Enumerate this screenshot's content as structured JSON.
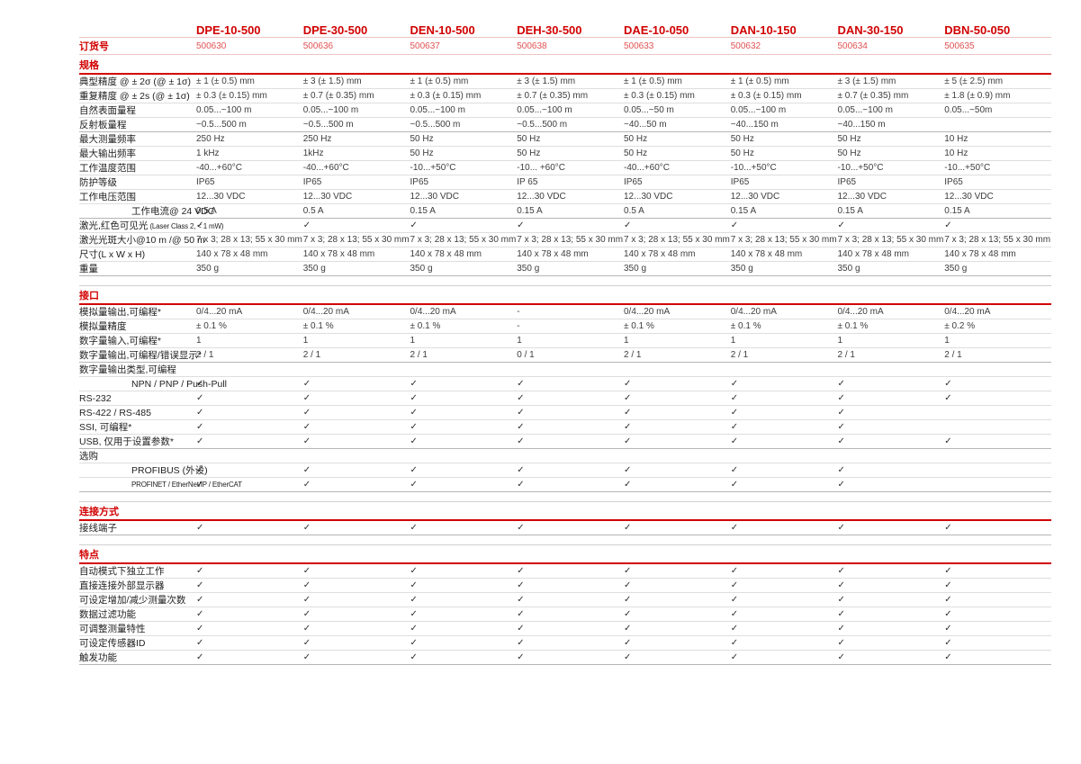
{
  "colors": {
    "accent_red": "#d10000",
    "order_number_red": "#e05252",
    "pink_line": "#eec3c3",
    "row_line": "#dedede",
    "heavy_line": "#b5b5b5",
    "text": "#3d3d3d"
  },
  "check_glyph": "✓",
  "header": {
    "order_label": "订货号",
    "columns": [
      {
        "model": "DPE-10-500",
        "order_no": "500630"
      },
      {
        "model": "DPE-30-500",
        "order_no": "500636"
      },
      {
        "model": "DEN-10-500",
        "order_no": "500637"
      },
      {
        "model": "DEH-30-500",
        "order_no": "500638"
      },
      {
        "model": "DAE-10-050",
        "order_no": "500633"
      },
      {
        "model": "DAN-10-150",
        "order_no": "500632"
      },
      {
        "model": "DAN-30-150",
        "order_no": "500634"
      },
      {
        "model": "DBN-50-050",
        "order_no": "500635"
      }
    ]
  },
  "sections": [
    {
      "title": "规格",
      "rows": [
        {
          "label": "典型精度 @ ± 2σ (@ ± 1σ)",
          "values": [
            "± 1 (± 0.5) mm",
            "± 3 (± 1.5) mm",
            "± 1 (± 0.5) mm",
            "± 3 (± 1.5) mm",
            "± 1 (± 0.5) mm",
            "± 1 (± 0.5) mm",
            "± 3 (± 1.5) mm",
            "± 5 (± 2.5) mm"
          ]
        },
        {
          "label": "重复精度 @ ± 2s (@ ± 1σ)",
          "values": [
            "± 0.3 (± 0.15) mm",
            "± 0.7 (± 0.35) mm",
            "± 0.3 (± 0.15) mm",
            "± 0.7 (± 0.35) mm",
            "± 0.3 (± 0.15) mm",
            "± 0.3 (± 0.15) mm",
            "± 0.7 (± 0.35) mm",
            "± 1.8 (± 0.9) mm"
          ]
        },
        {
          "label": "自然表面量程",
          "values": [
            "0.05...~100 m",
            "0.05...~100 m",
            "0.05...~100 m",
            "0.05...~100 m",
            "0.05...~50 m",
            "0.05...~100 m",
            "0.05...~100 m",
            "0.05...~50m"
          ]
        },
        {
          "label": "反射板量程",
          "heavy": true,
          "values": [
            "~0.5...500 m",
            "~0.5...500 m",
            "~0.5...500 m",
            "~0.5...500 m",
            "~40...50 m",
            "~40...150 m",
            "~40...150 m",
            ""
          ]
        },
        {
          "label": "最大测量频率",
          "values": [
            "250 Hz",
            "250 Hz",
            "50 Hz",
            "50 Hz",
            "50 Hz",
            "50 Hz",
            "50 Hz",
            "10 Hz"
          ]
        },
        {
          "label": "最大输出频率",
          "values": [
            "1 kHz",
            "1kHz",
            "50 Hz",
            "50 Hz",
            "50 Hz",
            "50 Hz",
            "50 Hz",
            "10 Hz"
          ]
        },
        {
          "label": "工作温度范围",
          "values": [
            "-40...+60°C",
            "-40...+60°C",
            "-10...+50°C",
            "-10... +60°C",
            "-40...+60°C",
            "-10...+50°C",
            "-10...+50°C",
            "-10...+50°C"
          ]
        },
        {
          "label": "防护等级",
          "values": [
            "IP65",
            "IP65",
            "IP65",
            "IP 65",
            "IP65",
            "IP65",
            "IP65",
            "IP65"
          ]
        },
        {
          "label": "工作电压范围",
          "values": [
            "12...30 VDC",
            "12...30 VDC",
            "12...30 VDC",
            "12...30 VDC",
            "12...30 VDC",
            "12...30 VDC",
            "12...30 VDC",
            "12...30 VDC"
          ]
        },
        {
          "label": "工作电流@ 24 VDC",
          "indent": true,
          "heavy": true,
          "values": [
            "0.5 A",
            "0.5 A",
            "0.15 A",
            "0.15 A",
            "0.5 A",
            "0.15 A",
            "0.15 A",
            "0.15 A"
          ]
        },
        {
          "label": "激光,红色可见光",
          "label_small": " (Laser Class 2, < 1 mW)",
          "values": [
            "✓",
            "✓",
            "✓",
            "✓",
            "✓",
            "✓",
            "✓",
            "✓"
          ]
        },
        {
          "label": "激光光斑大小@10 m /@ 50 m",
          "values": [
            "7 x 3; 28 x 13; 55 x 30 mm",
            "7 x 3; 28 x 13; 55 x 30 mm",
            "7 x 3; 28 x 13; 55 x 30 mm",
            "7 x 3; 28 x 13; 55 x 30 mm",
            "7 x 3; 28 x 13; 55 x 30 mm",
            "7 x 3; 28 x 13; 55 x 30 mm",
            "7 x 3; 28 x 13; 55 x 30 mm",
            "7 x 3; 28 x 13; 55 x 30 mm"
          ]
        },
        {
          "label": "尺寸(L x W x H)",
          "values": [
            "140 x 78 x 48 mm",
            "140 x 78 x 48 mm",
            "140 x 78 x 48 mm",
            "140 x 78 x 48 mm",
            "140 x 78 x 48 mm",
            "140 x 78 x 48 mm",
            "140 x 78 x 48 mm",
            "140 x 78 x 48 mm"
          ]
        },
        {
          "label": "重量",
          "heavy": true,
          "values": [
            "350 g",
            "350 g",
            "350 g",
            "350 g",
            "350 g",
            "350 g",
            "350 g",
            "350 g"
          ]
        }
      ]
    },
    {
      "title": "接口",
      "rows": [
        {
          "label": "模拟量输出,可编程*",
          "values": [
            "0/4...20 mA",
            "0/4...20 mA",
            "0/4...20 mA",
            "-",
            "0/4...20 mA",
            "0/4...20 mA",
            "0/4...20 mA",
            "0/4...20 mA"
          ]
        },
        {
          "label": "模拟量精度",
          "values": [
            "± 0.1 %",
            "± 0.1 %",
            "± 0.1 %",
            "-",
            "± 0.1 %",
            "± 0.1 %",
            "± 0.1 %",
            "± 0.2 %"
          ]
        },
        {
          "label": "数字量输入,可编程*",
          "values": [
            "1",
            "1",
            "1",
            "1",
            "1",
            "1",
            "1",
            "1"
          ]
        },
        {
          "label": "数字量输出,可编程/错误显示*",
          "heavy": true,
          "values": [
            "2 / 1",
            "2 / 1",
            "2 / 1",
            "0 / 1",
            "2 / 1",
            "2 / 1",
            "2 / 1",
            "2 / 1"
          ]
        },
        {
          "label": "数字量输出类型,可编程",
          "values": [
            "",
            "",
            "",
            "",
            "",
            "",
            "",
            ""
          ]
        },
        {
          "label": "NPN / PNP / Push-Pull",
          "indent": true,
          "values": [
            "✓",
            "✓",
            "✓",
            "✓",
            "✓",
            "✓",
            "✓",
            "✓"
          ]
        },
        {
          "label": "RS-232",
          "values": [
            "✓",
            "✓",
            "✓",
            "✓",
            "✓",
            "✓",
            "✓",
            "✓"
          ]
        },
        {
          "label": "RS-422 / RS-485",
          "values": [
            "✓",
            "✓",
            "✓",
            "✓",
            "✓",
            "✓",
            "✓",
            ""
          ]
        },
        {
          "label": "SSI, 可编程*",
          "values": [
            "✓",
            "✓",
            "✓",
            "✓",
            "✓",
            "✓",
            "✓",
            ""
          ]
        },
        {
          "label": "USB, 仅用于设置参数*",
          "heavy": true,
          "values": [
            "✓",
            "✓",
            "✓",
            "✓",
            "✓",
            "✓",
            "✓",
            "✓"
          ]
        },
        {
          "label": "选购",
          "values": [
            "",
            "",
            "",
            "",
            "",
            "",
            "",
            ""
          ]
        },
        {
          "label": "PROFIBUS (外设)",
          "indent": true,
          "values": [
            "✓",
            "✓",
            "✓",
            "✓",
            "✓",
            "✓",
            "✓",
            ""
          ]
        },
        {
          "label": "PROFINET / EtherNet/IP / EtherCAT",
          "indent": true,
          "tiny": true,
          "heavy": true,
          "values": [
            "✓",
            "✓",
            "✓",
            "✓",
            "✓",
            "✓",
            "✓",
            ""
          ]
        }
      ]
    },
    {
      "title": "连接方式",
      "rows": [
        {
          "label": "接线端子",
          "heavy": true,
          "values": [
            "✓",
            "✓",
            "✓",
            "✓",
            "✓",
            "✓",
            "✓",
            "✓"
          ]
        }
      ]
    },
    {
      "title": "特点",
      "rows": [
        {
          "label": "自动模式下独立工作",
          "values": [
            "✓",
            "✓",
            "✓",
            "✓",
            "✓",
            "✓",
            "✓",
            "✓"
          ]
        },
        {
          "label": "直接连接外部显示器",
          "values": [
            "✓",
            "✓",
            "✓",
            "✓",
            "✓",
            "✓",
            "✓",
            "✓"
          ]
        },
        {
          "label": "可设定增加/减少测量次数",
          "values": [
            "✓",
            "✓",
            "✓",
            "✓",
            "✓",
            "✓",
            "✓",
            "✓"
          ]
        },
        {
          "label": "数据过滤功能",
          "values": [
            "✓",
            "✓",
            "✓",
            "✓",
            "✓",
            "✓",
            "✓",
            "✓"
          ]
        },
        {
          "label": "可调整测量特性",
          "values": [
            "✓",
            "✓",
            "✓",
            "✓",
            "✓",
            "✓",
            "✓",
            "✓"
          ]
        },
        {
          "label": "可设定传感器ID",
          "values": [
            "✓",
            "✓",
            "✓",
            "✓",
            "✓",
            "✓",
            "✓",
            "✓"
          ]
        },
        {
          "label": "触发功能",
          "heavy": true,
          "values": [
            "✓",
            "✓",
            "✓",
            "✓",
            "✓",
            "✓",
            "✓",
            "✓"
          ]
        }
      ]
    }
  ]
}
